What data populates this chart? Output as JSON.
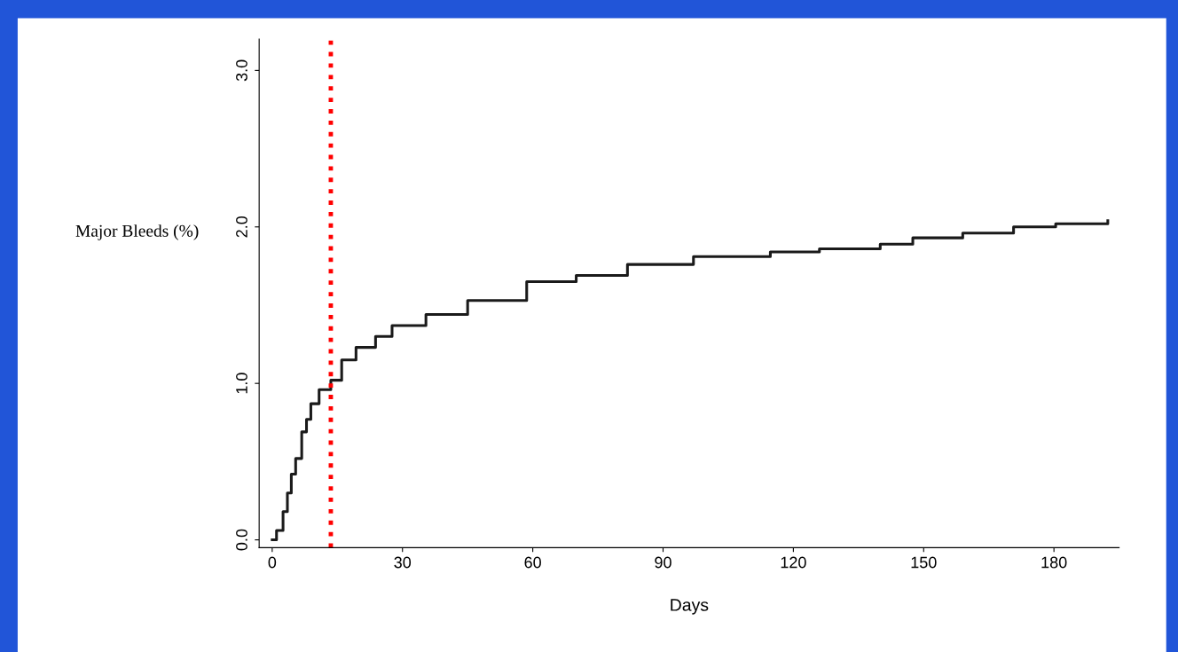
{
  "chart_data": {
    "type": "step",
    "xlabel": "Days",
    "ylabel": "Major Bleeds (%)",
    "series": [
      {
        "color": "#1a1a1a",
        "x": [
          0,
          1,
          2.5,
          3.5,
          4.4,
          5.4,
          6.8,
          7.9,
          8.9,
          10.8,
          13.5,
          16,
          19.3,
          23.8,
          27.6,
          35.4,
          45,
          58.6,
          70,
          81.8,
          97,
          114.7,
          126,
          140,
          147.5,
          159,
          170.7,
          180.4,
          192.4
        ],
        "values": [
          0,
          0.06,
          0.18,
          0.3,
          0.42,
          0.52,
          0.69,
          0.77,
          0.87,
          0.96,
          1.02,
          1.15,
          1.23,
          1.3,
          1.37,
          1.44,
          1.53,
          1.65,
          1.69,
          1.76,
          1.81,
          1.84,
          1.86,
          1.89,
          1.93,
          1.96,
          2.0,
          2.02,
          2.04
        ]
      }
    ],
    "xlim": [
      -3,
      195
    ],
    "xticks": [
      0,
      30,
      60,
      90,
      120,
      150,
      180
    ],
    "ylim": [
      -0.05,
      3.2
    ],
    "yticks": [
      {
        "value": 0,
        "label": "0.0"
      },
      {
        "value": 1,
        "label": "1.0"
      },
      {
        "value": 2,
        "label": "2.0"
      },
      {
        "value": 3,
        "label": "3.0"
      }
    ],
    "ref_lines": [
      {
        "axis": "x",
        "value": 13.5,
        "color": "#ff0000",
        "line_style": "dotted"
      }
    ],
    "grid": false,
    "marker": "none",
    "line_style": "solid"
  }
}
